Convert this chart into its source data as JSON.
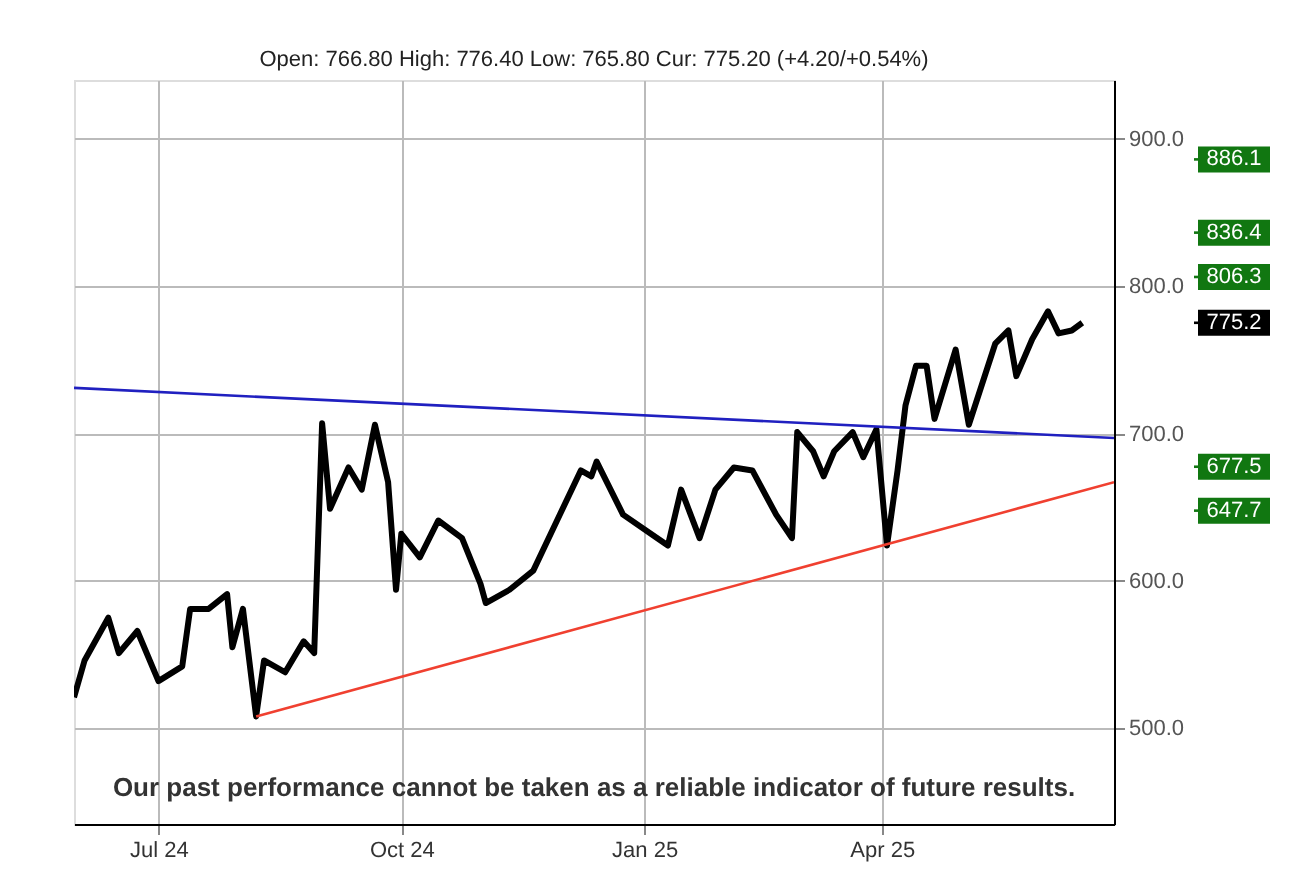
{
  "chart_data": {
    "type": "line",
    "subtitle": "Open: 766.80 High: 776.40 Low: 765.80 Cur: 775.20 (+4.20/+0.54%)",
    "xlim": [
      "2024-05-30",
      "2025-06-28"
    ],
    "ylim": [
      435,
      940
    ],
    "xticks": [
      {
        "value": "2024-07-01",
        "label": "Jul 24"
      },
      {
        "value": "2024-10-01",
        "label": "Oct 24"
      },
      {
        "value": "2025-01-01",
        "label": "Jan 25"
      },
      {
        "value": "2025-04-01",
        "label": "Apr 25"
      }
    ],
    "yticks": [
      {
        "value": 500,
        "label": "500.0"
      },
      {
        "value": 600,
        "label": "600.0"
      },
      {
        "value": 700,
        "label": "700.0"
      },
      {
        "value": 800,
        "label": "800.0"
      },
      {
        "value": 900,
        "label": "900.0"
      }
    ],
    "grid": true,
    "marker": "none",
    "line_style": "solid",
    "series": [
      {
        "color": "#000000",
        "x": [
          "2024-05-30",
          "2024-06-03",
          "2024-06-12",
          "2024-06-16",
          "2024-06-23",
          "2024-07-01",
          "2024-07-10",
          "2024-07-13",
          "2024-07-20",
          "2024-07-27",
          "2024-07-29",
          "2024-08-02",
          "2024-08-07",
          "2024-08-10",
          "2024-08-18",
          "2024-08-25",
          "2024-08-29",
          "2024-09-01",
          "2024-09-04",
          "2024-09-11",
          "2024-09-16",
          "2024-09-21",
          "2024-09-26",
          "2024-09-29",
          "2024-10-01",
          "2024-10-08",
          "2024-10-15",
          "2024-10-24",
          "2024-10-31",
          "2024-11-02",
          "2024-11-11",
          "2024-11-20",
          "2024-11-29",
          "2024-12-08",
          "2024-12-12",
          "2024-12-14",
          "2024-12-24",
          "2025-01-06",
          "2025-01-10",
          "2025-01-15",
          "2025-01-22",
          "2025-01-28",
          "2025-02-04",
          "2025-02-11",
          "2025-02-20",
          "2025-02-26",
          "2025-02-28",
          "2025-03-06",
          "2025-03-10",
          "2025-03-14",
          "2025-03-21",
          "2025-03-25",
          "2025-03-30",
          "2025-04-03",
          "2025-04-07",
          "2025-04-10",
          "2025-04-14",
          "2025-04-18",
          "2025-04-21",
          "2025-04-29",
          "2025-05-04",
          "2025-05-14",
          "2025-05-19",
          "2025-05-22",
          "2025-05-28",
          "2025-06-03",
          "2025-06-07",
          "2025-06-12",
          "2025-06-16"
        ],
        "values": [
          521,
          546,
          575,
          551,
          566,
          532,
          542,
          581,
          581,
          591,
          555,
          581,
          508,
          546,
          538,
          559,
          551,
          707,
          649,
          677,
          662,
          706,
          667,
          594,
          632,
          616,
          641,
          629,
          598,
          585,
          594,
          607,
          641,
          675,
          671,
          681,
          645,
          629,
          624,
          662,
          629,
          662,
          677,
          675,
          645,
          629,
          701,
          688,
          671,
          688,
          701,
          684,
          703,
          624,
          675,
          719,
          746,
          746,
          710,
          757,
          706,
          761,
          770,
          739,
          764,
          783,
          768,
          770,
          775.2
        ]
      },
      {
        "type": "line",
        "color": "#2020c0",
        "x": [
          "2024-05-30",
          "2025-06-28"
        ],
        "values": [
          731,
          697
        ]
      },
      {
        "type": "line",
        "color": "#f04030",
        "x": [
          "2024-08-07",
          "2025-06-28"
        ],
        "values": [
          508,
          667
        ]
      }
    ],
    "ref_lines": [
      {
        "axis": "y",
        "value": 886.1,
        "label": "886.1",
        "color": "#117711"
      },
      {
        "axis": "y",
        "value": 836.4,
        "label": "836.4",
        "color": "#117711"
      },
      {
        "axis": "y",
        "value": 806.3,
        "label": "806.3",
        "color": "#117711"
      },
      {
        "axis": "y",
        "value": 775.2,
        "label": "775.2",
        "color": "#000000"
      },
      {
        "axis": "y",
        "value": 677.5,
        "label": "677.5",
        "color": "#117711"
      },
      {
        "axis": "y",
        "value": 647.7,
        "label": "647.7",
        "color": "#117711"
      }
    ],
    "annotations": [
      "Our past performance cannot be taken as a reliable indicator of future results."
    ]
  }
}
